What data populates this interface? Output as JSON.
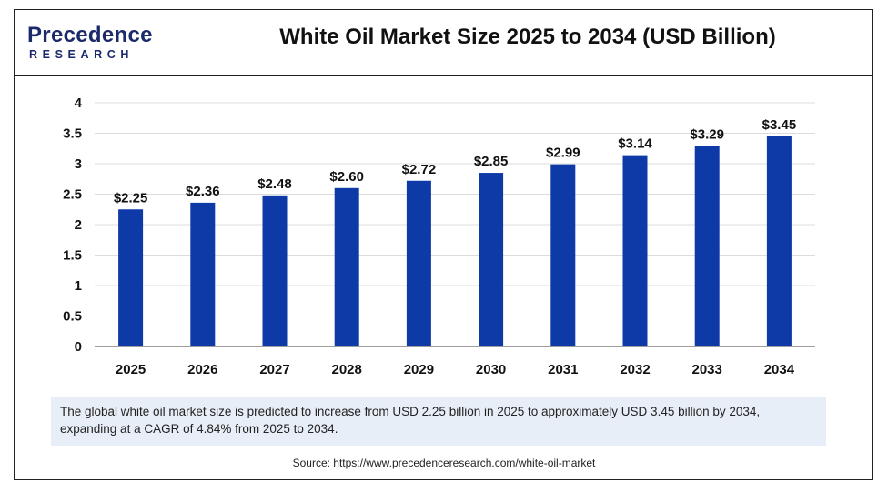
{
  "header": {
    "logo_main": "Precedence",
    "logo_sub": "RESEARCH",
    "title": "White Oil Market Size 2025 to 2034 (USD Billion)"
  },
  "colors": {
    "bar": "#0d3aa6",
    "grid": "#dcdcdc",
    "axis": "#666666",
    "caption_bg": "#e8eef7"
  },
  "chart_data": {
    "type": "bar",
    "title": "White Oil Market Size 2025 to 2034 (USD Billion)",
    "xlabel": "",
    "ylabel": "",
    "categories": [
      "2025",
      "2026",
      "2027",
      "2028",
      "2029",
      "2030",
      "2031",
      "2032",
      "2033",
      "2034"
    ],
    "values": [
      2.25,
      2.36,
      2.48,
      2.6,
      2.72,
      2.85,
      2.99,
      3.14,
      3.29,
      3.45
    ],
    "value_labels": [
      "$2.25",
      "$2.36",
      "$2.48",
      "$2.60",
      "$2.72",
      "$2.85",
      "$2.99",
      "$3.14",
      "$3.29",
      "$3.45"
    ],
    "y_ticks": [
      "0",
      "0.5",
      "1",
      "1.5",
      "2",
      "2.5",
      "3",
      "3.5",
      "4"
    ],
    "ylim": [
      0,
      4
    ],
    "grid": true,
    "legend": "none"
  },
  "caption": "The global white oil market size is predicted to increase from USD 2.25 billion in 2025 to approximately USD 3.45 billion by 2034, expanding at a CAGR of 4.84% from 2025 to 2034.",
  "source": "Source: https://www.precedenceresearch.com/white-oil-market"
}
